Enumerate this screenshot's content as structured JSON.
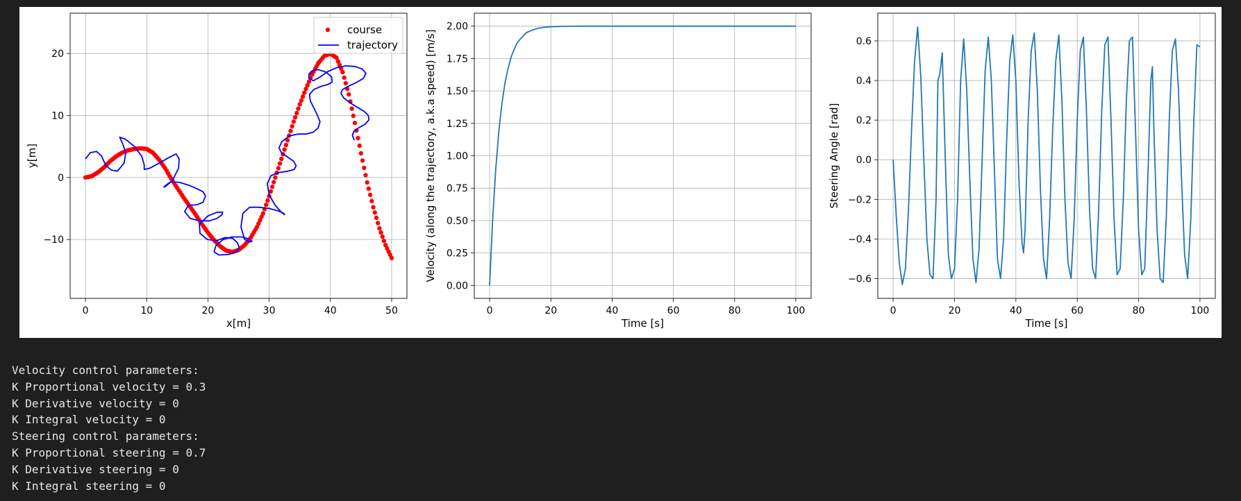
{
  "colors": {
    "course": "#ff0000",
    "trajectory": "#0000ff",
    "line": "#1f77b4",
    "grid": "#b0b0b0",
    "background": "#1f1f1f"
  },
  "output_lines": [
    "Velocity control parameters:",
    "K Proportional velocity = 0.3",
    "K Derivative velocity = 0",
    "K Integral velocity = 0",
    "Steering control parameters:",
    "K Proportional steering = 0.7",
    "K Derivative steering = 0",
    "K Integral steering = 0"
  ],
  "chart_data": [
    {
      "type": "scatter",
      "xlabel": "x[m]",
      "ylabel": "y[m]",
      "xlim": [
        -2.5,
        52.5
      ],
      "ylim": [
        -19.5,
        26.5
      ],
      "xticks": [
        0,
        10,
        20,
        30,
        40,
        50
      ],
      "yticks": [
        -10,
        0,
        10,
        20
      ],
      "grid": true,
      "legend": {
        "placement": "top-right",
        "entries": [
          "course",
          "trajectory"
        ]
      },
      "series": [
        {
          "name": "course",
          "kind": "points",
          "color": "#ff0000",
          "x": [
            0,
            1,
            2,
            3,
            4,
            5,
            6,
            7,
            8,
            9,
            10,
            11,
            12,
            13,
            14,
            15,
            16,
            17,
            18,
            19,
            20,
            21,
            22,
            23,
            24,
            25,
            26,
            27,
            28,
            29,
            30,
            31,
            32,
            33,
            34,
            35,
            36,
            37,
            38,
            39,
            40,
            41,
            42,
            43,
            44,
            45,
            46,
            47,
            48,
            49,
            50
          ],
          "y": [
            0,
            0.2,
            0.8,
            1.6,
            2.6,
            3.4,
            4.0,
            4.4,
            4.6,
            4.7,
            4.6,
            4.0,
            2.9,
            1.5,
            -0.2,
            -1.7,
            -3.2,
            -4.6,
            -6.0,
            -7.5,
            -8.9,
            -10.1,
            -11.1,
            -11.8,
            -12.0,
            -11.7,
            -10.9,
            -9.7,
            -8.0,
            -5.8,
            -3.0,
            0,
            3.0,
            6.0,
            9.0,
            11.8,
            14.3,
            16.6,
            18.4,
            19.6,
            20.0,
            19.3,
            17.0,
            13.4,
            8.8,
            3.9,
            -0.8,
            -4.8,
            -8.2,
            -10.9,
            -13.0
          ]
        },
        {
          "name": "trajectory",
          "kind": "line",
          "color": "#0000ff",
          "x": [
            0,
            0.8,
            1.8,
            2.6,
            3.3,
            4.2,
            5.2,
            6.3,
            6.6,
            6.0,
            5.6,
            6.5,
            8.0,
            9.2,
            9.6,
            9.6,
            10.5,
            12.0,
            13.6,
            14.8,
            15.3,
            15.2,
            14.2,
            13.0,
            12.8,
            13.9,
            15.4,
            17.0,
            18.2,
            19.2,
            19.6,
            19.2,
            18.2,
            16.8,
            16.2,
            17.1,
            18.6,
            20.2,
            21.5,
            22.3,
            22.4,
            21.5,
            20.0,
            18.6,
            18.7,
            19.9,
            21.4,
            22.8,
            24.0,
            24.8,
            25.1,
            24.7,
            23.4,
            21.8,
            21.0,
            21.3,
            22.5,
            23.9,
            25.5,
            26.7,
            27.2,
            26.9,
            26.0,
            25.4,
            25.7,
            26.8,
            28.3,
            30.0,
            31.5,
            32.4,
            32.5,
            32.0,
            31.0,
            30.0,
            29.7,
            30.3,
            31.6,
            33.0,
            34.1,
            34.4,
            34.0,
            33.0,
            32.0,
            31.6,
            32.1,
            33.3,
            34.7,
            36.0,
            37.2,
            38.0,
            38.3,
            37.8,
            37.2,
            36.7,
            36.6,
            37.3,
            38.5,
            39.6,
            40.3,
            40.2,
            39.3,
            38.0,
            37.0,
            36.5,
            36.5,
            37.2,
            38.3,
            39.6,
            41.0,
            42.5,
            44.0,
            45.2,
            45.8,
            45.4,
            44.2,
            42.9,
            42.0,
            41.7,
            42.2,
            43.3,
            44.6,
            45.6,
            46.2,
            46.3,
            45.7,
            44.6,
            43.8,
            43.6,
            43.9
          ],
          "y": [
            3.0,
            4.0,
            4.2,
            3.5,
            2.0,
            1.2,
            1.0,
            2.3,
            4.0,
            5.6,
            6.5,
            6.2,
            5.0,
            3.4,
            2.0,
            1.3,
            1.5,
            2.3,
            3.2,
            3.8,
            3.0,
            1.5,
            -0.5,
            -1.5,
            -1.5,
            -0.7,
            -0.8,
            -1.3,
            -1.8,
            -2.3,
            -3.0,
            -4.0,
            -4.4,
            -4.5,
            -5.5,
            -6.6,
            -7.0,
            -7.0,
            -6.6,
            -6.0,
            -5.6,
            -5.6,
            -6.2,
            -7.5,
            -9.0,
            -10.0,
            -10.2,
            -9.7,
            -9.8,
            -10.5,
            -11.3,
            -12.0,
            -12.4,
            -12.5,
            -12.0,
            -11.0,
            -10.0,
            -9.6,
            -9.6,
            -9.9,
            -10.3,
            -10.4,
            -10.0,
            -8.0,
            -5.8,
            -4.8,
            -4.8,
            -5.0,
            -5.4,
            -5.8,
            -6.0,
            -5.6,
            -4.5,
            -2.8,
            -1.0,
            0.3,
            0.8,
            1.0,
            1.3,
            1.9,
            2.6,
            3.3,
            4.0,
            4.8,
            5.8,
            6.7,
            7.0,
            7.0,
            7.3,
            8.0,
            9.0,
            10.2,
            11.4,
            12.4,
            13.4,
            14.2,
            14.7,
            15.0,
            15.4,
            16.2,
            17.0,
            17.4,
            17.2,
            16.7,
            16.0,
            15.6,
            16.2,
            17.1,
            17.7,
            18.0,
            17.9,
            17.5,
            16.8,
            16.0,
            15.3,
            14.7,
            14.2,
            13.6,
            12.8,
            12.0,
            11.2,
            10.6,
            10.0,
            9.3,
            8.6,
            8.0,
            7.4,
            6.8,
            6.0
          ]
        }
      ]
    },
    {
      "type": "line",
      "xlabel": "Time [s]",
      "ylabel": "Velocity (along the trajectory, a.k.a speed) [m/s]",
      "xlim": [
        -5,
        105
      ],
      "ylim": [
        -0.1,
        2.1
      ],
      "xticks": [
        0,
        20,
        40,
        60,
        80,
        100
      ],
      "yticks": [
        0.0,
        0.25,
        0.5,
        0.75,
        1.0,
        1.25,
        1.5,
        1.75,
        2.0
      ],
      "ytick_labels": [
        "0.00",
        "0.25",
        "0.50",
        "0.75",
        "1.00",
        "1.25",
        "1.50",
        "1.75",
        "2.00"
      ],
      "grid": true,
      "series": [
        {
          "color": "#1f77b4",
          "x": [
            0,
            1,
            2,
            3,
            4,
            5,
            6,
            7,
            8,
            9,
            10,
            12,
            14,
            16,
            18,
            20,
            25,
            30,
            40,
            60,
            80,
            100
          ],
          "y": [
            0,
            0.52,
            0.9,
            1.19,
            1.4,
            1.56,
            1.67,
            1.76,
            1.82,
            1.87,
            1.9,
            1.95,
            1.97,
            1.985,
            1.992,
            1.995,
            1.999,
            2.0,
            2.0,
            2.0,
            2.0,
            2.0
          ]
        }
      ]
    },
    {
      "type": "line",
      "xlabel": "Time [s]",
      "ylabel": "Steering Angle [rad]",
      "xlim": [
        -5,
        105
      ],
      "ylim": [
        -0.7,
        0.74
      ],
      "xticks": [
        0,
        20,
        40,
        60,
        80,
        100
      ],
      "yticks": [
        -0.6,
        -0.4,
        -0.2,
        0.0,
        0.2,
        0.4,
        0.6
      ],
      "ytick_labels": [
        "−0.6",
        "−0.4",
        "−0.2",
        "0.0",
        "0.2",
        "0.4",
        "0.6"
      ],
      "grid": true,
      "series": [
        {
          "color": "#1f77b4",
          "x": [
            0,
            1,
            2,
            3,
            4,
            5,
            6,
            7,
            8,
            9,
            10,
            11,
            12,
            13,
            14,
            14.6,
            15.2,
            16,
            17,
            18,
            19,
            20,
            21,
            22,
            23,
            24,
            25,
            26,
            27,
            28,
            29,
            30,
            31,
            32,
            33,
            34,
            35,
            36,
            37,
            38,
            39,
            40,
            41,
            42,
            42.5,
            43,
            44,
            45,
            46,
            47,
            48,
            49,
            50,
            51,
            52,
            53,
            54,
            55,
            56,
            57,
            58,
            59,
            60,
            61,
            62,
            63,
            64,
            65,
            66,
            67,
            68,
            69,
            70,
            71,
            72,
            73,
            74,
            75,
            76,
            77,
            78,
            79,
            80,
            81,
            82,
            83,
            84,
            84.5,
            85,
            86,
            87,
            88,
            89,
            90,
            91,
            92,
            93,
            94,
            95,
            96,
            97,
            98,
            99,
            100
          ],
          "y": [
            0.0,
            -0.28,
            -0.52,
            -0.63,
            -0.55,
            -0.25,
            0.15,
            0.5,
            0.67,
            0.42,
            0.0,
            -0.4,
            -0.58,
            -0.6,
            -0.2,
            0.4,
            0.43,
            0.54,
            0.0,
            -0.48,
            -0.6,
            -0.55,
            -0.2,
            0.4,
            0.61,
            0.35,
            -0.1,
            -0.5,
            -0.62,
            -0.45,
            0.0,
            0.45,
            0.62,
            0.4,
            -0.05,
            -0.5,
            -0.6,
            -0.4,
            0.1,
            0.5,
            0.63,
            0.4,
            -0.1,
            -0.42,
            -0.47,
            -0.35,
            0.2,
            0.55,
            0.64,
            0.35,
            -0.15,
            -0.5,
            -0.6,
            -0.3,
            0.15,
            0.5,
            0.63,
            0.3,
            -0.2,
            -0.52,
            -0.6,
            -0.3,
            0.2,
            0.55,
            0.62,
            0.25,
            -0.25,
            -0.55,
            -0.6,
            -0.25,
            0.25,
            0.58,
            0.62,
            0.2,
            -0.3,
            -0.58,
            -0.55,
            -0.2,
            0.3,
            0.6,
            0.62,
            0.15,
            -0.35,
            -0.58,
            -0.55,
            -0.1,
            0.4,
            0.47,
            0.15,
            -0.35,
            -0.6,
            -0.62,
            -0.3,
            0.2,
            0.55,
            0.61,
            0.35,
            -0.1,
            -0.48,
            -0.6,
            -0.3,
            0.2,
            0.58,
            0.57
          ]
        }
      ]
    }
  ]
}
